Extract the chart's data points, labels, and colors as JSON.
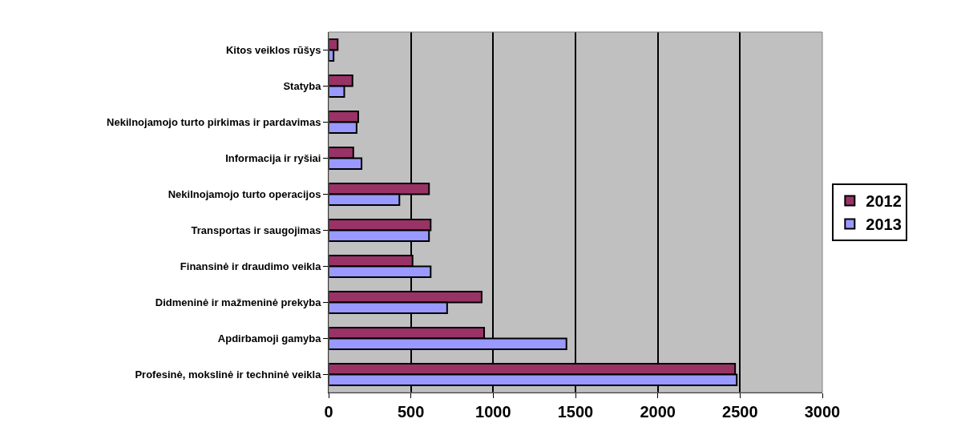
{
  "chart_data": {
    "type": "bar",
    "orientation": "horizontal",
    "categories": [
      "Kitos veiklos rūšys",
      "Statyba",
      "Nekilnojamojo turto pirkimas ir pardavimas",
      "Informacija ir ryšiai",
      "Nekilnojamojo turto operacijos",
      "Transportas ir saugojimas",
      "Finansinė ir draudimo veikla",
      "Didmeninė ir mažmeninė prekyba",
      "Apdirbamoji gamyba",
      "Profesinė, mokslinė ir techninė veikla"
    ],
    "series": [
      {
        "name": "2012",
        "color": "#993366",
        "values": [
          55,
          145,
          180,
          150,
          610,
          620,
          510,
          930,
          945,
          2470
        ]
      },
      {
        "name": "2013",
        "color": "#9999ff",
        "values": [
          30,
          95,
          170,
          200,
          430,
          610,
          620,
          720,
          1445,
          2480
        ]
      }
    ],
    "xlim": [
      0,
      3000
    ],
    "xticks": [
      0,
      500,
      1000,
      1500,
      2000,
      2500,
      3000
    ],
    "grid": "x",
    "legend": "right"
  }
}
